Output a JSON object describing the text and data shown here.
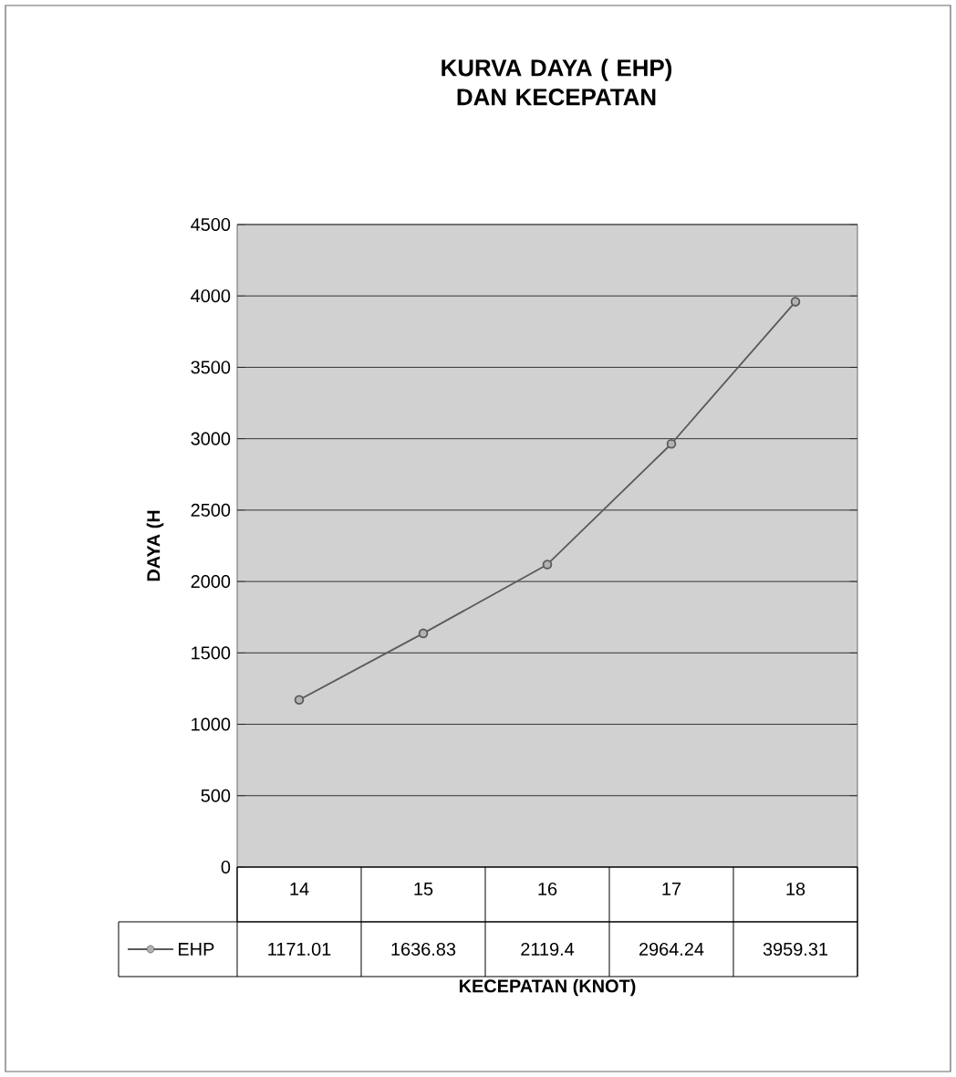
{
  "chart_data": {
    "type": "line",
    "title": "KURVA DAYA ( EHP) DAN KECEPATAN",
    "xlabel": "KECEPATAN (KNOT)",
    "ylabel": "DAYA (H",
    "categories": [
      "14",
      "15",
      "16",
      "17",
      "18"
    ],
    "series": [
      {
        "name": "EHP",
        "color": "#5a5a5a",
        "values": [
          1171.01,
          1636.83,
          2119.4,
          2964.24,
          3959.31
        ]
      }
    ],
    "ylim": [
      0,
      4500
    ],
    "yticks": [
      0,
      500,
      1000,
      1500,
      2000,
      2500,
      3000,
      3500,
      4000,
      4500
    ],
    "grid": "y",
    "legend": "bottom",
    "marker": "circle",
    "line_style": "solid",
    "data_labels": true
  }
}
